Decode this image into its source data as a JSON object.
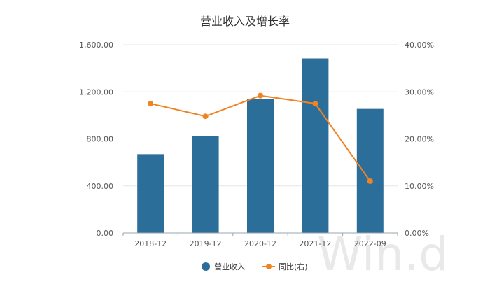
{
  "chart_data": {
    "type": "bar",
    "title": "营业收入及增长率",
    "categories": [
      "2018-12",
      "2019-12",
      "2020-12",
      "2021-12",
      "2022-09"
    ],
    "series": [
      {
        "name": "营业收入",
        "type": "bar",
        "axis": "left",
        "color": "#2c6e9a",
        "values": [
          670,
          822,
          1138,
          1484,
          1055
        ]
      },
      {
        "name": "同比(右)",
        "type": "line",
        "axis": "right",
        "color": "#f08323",
        "values": [
          27.5,
          24.8,
          29.2,
          27.5,
          11.0
        ]
      }
    ],
    "left_axis": {
      "ylim": [
        0,
        1600
      ],
      "ticks": [
        0,
        400,
        800,
        1200,
        1600
      ],
      "tick_labels": [
        "0.00",
        "400.00",
        "800.00",
        "1,200.00",
        "1,600.00"
      ]
    },
    "right_axis": {
      "ylim": [
        0,
        40
      ],
      "ticks": [
        0,
        10,
        20,
        30,
        40
      ],
      "tick_labels": [
        "0.00%",
        "10.00%",
        "20.00%",
        "30.00%",
        "40.00%"
      ]
    },
    "grid": true,
    "legend": "bottom-center",
    "watermark": "Win.d"
  }
}
